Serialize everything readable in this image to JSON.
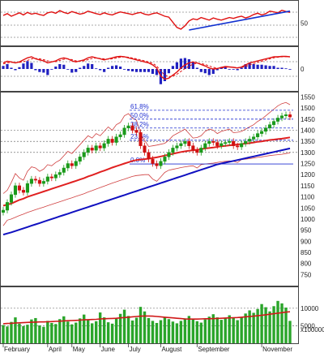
{
  "colors": {
    "up": "#1a9a1a",
    "down": "#d01010",
    "ma_short": "#e02020",
    "ma_long": "#1010c0",
    "bands": "#d04040",
    "rsi": "#e01010",
    "trendline": "#1030d0",
    "fib": "#2030d0",
    "volume": "#2aa52a",
    "volume_ma": "#d01818"
  },
  "chart_data": [
    {
      "type": "line",
      "panel": "rsi",
      "y_ticks": [
        50
      ],
      "ylim": [
        0,
        100
      ],
      "series": [
        {
          "values": [
            68,
            72,
            66,
            70,
            74,
            69,
            75,
            71,
            73,
            70,
            68,
            74,
            76,
            73,
            79,
            75,
            72,
            77,
            74,
            71,
            73,
            78,
            75,
            72,
            70,
            74,
            71,
            69,
            73,
            76,
            74,
            72,
            70,
            73,
            75,
            71,
            69,
            72,
            74,
            70,
            66,
            64,
            52,
            40,
            36,
            44,
            55,
            60,
            58,
            63,
            60,
            57,
            62,
            59,
            57,
            60,
            63,
            61,
            64,
            66,
            62,
            65,
            70,
            73,
            69,
            72,
            78,
            76,
            74,
            80,
            77,
            75
          ]
        }
      ],
      "annotations": [
        {
          "type": "trendline",
          "from": [
            46,
            34
          ],
          "to": [
            71,
            78
          ]
        }
      ]
    },
    {
      "type": "bar",
      "panel": "macd",
      "y_ticks": [
        0
      ],
      "ylim": [
        -1,
        1
      ],
      "series": [
        {
          "values": [
            0.3,
            0.38,
            0.35,
            0.3,
            0.35,
            0.45,
            0.55,
            0.6,
            0.5,
            0.45,
            0.4,
            0.3,
            0.35,
            0.4,
            0.5,
            0.55,
            0.5,
            0.4,
            0.35,
            0.4,
            0.45,
            0.55,
            0.6,
            0.55,
            0.5,
            0.45,
            0.5,
            0.55,
            0.6,
            0.62,
            0.6,
            0.55,
            0.5,
            0.45,
            0.4,
            0.35,
            0.3,
            0.2,
            0.05,
            -0.35,
            -0.5,
            -0.45,
            -0.3,
            -0.15,
            0.05,
            0.2,
            0.3,
            0.35,
            0.3,
            0.22,
            0.15,
            0.05,
            0.0,
            0.02,
            0.08,
            0.12,
            0.1,
            0.08,
            0.05,
            0.1,
            0.2,
            0.3,
            0.35,
            0.4,
            0.45,
            0.5,
            0.55,
            0.6,
            0.6,
            0.62,
            0.62,
            0.6
          ]
        },
        {
          "values": [
            0.25,
            0.3,
            0.33,
            0.32,
            0.32,
            0.36,
            0.42,
            0.5,
            0.52,
            0.5,
            0.46,
            0.4,
            0.36,
            0.36,
            0.42,
            0.48,
            0.5,
            0.46,
            0.4,
            0.38,
            0.4,
            0.46,
            0.52,
            0.54,
            0.52,
            0.5,
            0.48,
            0.5,
            0.54,
            0.58,
            0.6,
            0.58,
            0.54,
            0.5,
            0.45,
            0.4,
            0.35,
            0.28,
            0.15,
            -0.1,
            -0.3,
            -0.38,
            -0.35,
            -0.26,
            -0.12,
            0.02,
            0.14,
            0.24,
            0.28,
            0.27,
            0.22,
            0.15,
            0.08,
            0.04,
            0.05,
            0.08,
            0.1,
            0.09,
            0.07,
            0.08,
            0.12,
            0.2,
            0.27,
            0.33,
            0.38,
            0.44,
            0.5,
            0.55,
            0.58,
            0.6,
            0.61,
            0.6
          ]
        },
        {
          "values": [
            0.05,
            0.08,
            0.02,
            -0.02,
            0.03,
            0.09,
            0.13,
            0.1,
            -0.02,
            -0.05,
            -0.06,
            -0.1,
            -0.01,
            0.04,
            0.08,
            0.07,
            0.0,
            -0.06,
            -0.05,
            0.02,
            0.05,
            0.09,
            0.08,
            0.01,
            -0.02,
            -0.05,
            0.02,
            0.05,
            0.06,
            0.04,
            0.0,
            -0.03,
            -0.04,
            -0.05,
            -0.05,
            -0.05,
            -0.05,
            -0.08,
            -0.1,
            -0.25,
            -0.2,
            -0.07,
            0.05,
            0.11,
            0.17,
            0.18,
            0.16,
            0.11,
            0.02,
            -0.05,
            -0.07,
            -0.1,
            -0.08,
            -0.02,
            0.03,
            0.04,
            0.0,
            -0.01,
            -0.02,
            0.02,
            0.08,
            0.1,
            0.08,
            0.07,
            0.07,
            0.06,
            0.05,
            0.05,
            0.02,
            0.02,
            0.01,
            0.0
          ]
        }
      ]
    },
    {
      "type": "candlestick",
      "panel": "price",
      "categories": [
        "February",
        "April",
        "May",
        "June",
        "July",
        "August",
        "September",
        "November"
      ],
      "category_index": [
        0,
        11,
        17,
        24,
        31,
        39,
        48,
        64
      ],
      "y_ticks": [
        750,
        800,
        850,
        900,
        950,
        1000,
        1050,
        1100,
        1150,
        1200,
        1250,
        1300,
        1350,
        1400,
        1450,
        1500,
        1550
      ],
      "ylim": [
        700,
        1570
      ],
      "close": [
        1040,
        1075,
        1110,
        1150,
        1130,
        1120,
        1160,
        1180,
        1175,
        1160,
        1170,
        1190,
        1185,
        1200,
        1210,
        1230,
        1250,
        1240,
        1260,
        1280,
        1300,
        1320,
        1310,
        1330,
        1320,
        1340,
        1360,
        1345,
        1370,
        1380,
        1410,
        1420,
        1400,
        1390,
        1330,
        1300,
        1270,
        1250,
        1240,
        1260,
        1280,
        1300,
        1320,
        1330,
        1340,
        1350,
        1330,
        1310,
        1300,
        1320,
        1340,
        1350,
        1345,
        1330,
        1340,
        1345,
        1350,
        1330,
        1325,
        1340,
        1350,
        1360,
        1370,
        1385,
        1395,
        1410,
        1425,
        1440,
        1455,
        1465,
        1470,
        1460
      ],
      "sma_short": [
        1060,
        1065,
        1070,
        1078,
        1086,
        1092,
        1100,
        1106,
        1112,
        1118,
        1124,
        1130,
        1136,
        1142,
        1148,
        1154,
        1160,
        1166,
        1172,
        1178,
        1184,
        1192,
        1198,
        1205,
        1212,
        1218,
        1225,
        1232,
        1238,
        1244,
        1250,
        1256,
        1262,
        1266,
        1268,
        1270,
        1272,
        1275,
        1278,
        1282,
        1286,
        1290,
        1294,
        1298,
        1302,
        1305,
        1308,
        1310,
        1312,
        1315,
        1318,
        1320,
        1322,
        1325,
        1328,
        1330,
        1332,
        1334,
        1336,
        1338,
        1340,
        1342,
        1345,
        1348,
        1350,
        1353,
        1356,
        1358,
        1360,
        1362,
        1365,
        1368
      ],
      "sma_long": [
        930,
        935,
        940,
        946,
        952,
        958,
        964,
        970,
        976,
        982,
        988,
        994,
        1000,
        1006,
        1012,
        1018,
        1024,
        1030,
        1036,
        1042,
        1048,
        1054,
        1060,
        1066,
        1072,
        1078,
        1084,
        1090,
        1096,
        1102,
        1108,
        1114,
        1120,
        1126,
        1132,
        1138,
        1144,
        1150,
        1156,
        1162,
        1168,
        1174,
        1180,
        1186,
        1192,
        1198,
        1204,
        1210,
        1216,
        1222,
        1228,
        1234,
        1240,
        1246,
        1250,
        1254,
        1258,
        1262,
        1266,
        1270,
        1274,
        1278,
        1282,
        1286,
        1290,
        1294,
        1298,
        1302,
        1306,
        1310,
        1314,
        1318
      ],
      "fib_levels": [
        {
          "label": "61.8%",
          "value": 1490
        },
        {
          "label": "50.0%",
          "value": 1450
        },
        {
          "label": "38.2%",
          "value": 1410
        },
        {
          "label": "23.6%",
          "value": 1355
        },
        {
          "label": "0.0%",
          "value": 1248
        }
      ]
    },
    {
      "type": "bar",
      "panel": "volume",
      "y_ticks": [
        10000,
        5000
      ],
      "y_tick_labels": [
        "10000",
        "5000"
      ],
      "ylim": [
        0,
        16000
      ],
      "multiplier_label": "x100000",
      "values": [
        5200,
        4800,
        6100,
        7400,
        5600,
        4900,
        5300,
        6800,
        7200,
        5100,
        4700,
        6400,
        5800,
        5500,
        6900,
        7700,
        6200,
        5400,
        5900,
        7100,
        8200,
        6600,
        5700,
        6300,
        8800,
        7400,
        6000,
        5600,
        7000,
        8400,
        9600,
        7800,
        6500,
        7300,
        10400,
        9100,
        7200,
        6400,
        5800,
        6600,
        7500,
        6900,
        6200,
        5700,
        6400,
        7100,
        7800,
        7000,
        6300,
        5900,
        6800,
        7600,
        8300,
        7400,
        6700,
        7200,
        8000,
        7300,
        6600,
        7400,
        8500,
        9400,
        8700,
        9800,
        11200,
        10300,
        9100,
        10600,
        12100,
        11400,
        10200,
        6400
      ],
      "ma": [
        5600,
        5650,
        5700,
        5800,
        5850,
        5900,
        5950,
        6000,
        6050,
        6100,
        6100,
        6150,
        6200,
        6250,
        6300,
        6400,
        6450,
        6500,
        6550,
        6600,
        6700,
        6750,
        6800,
        6850,
        6950,
        7000,
        7050,
        7100,
        7150,
        7250,
        7350,
        7450,
        7550,
        7650,
        7750,
        7800,
        7800,
        7750,
        7650,
        7550,
        7450,
        7350,
        7250,
        7150,
        7050,
        6950,
        6900,
        6900,
        6900,
        6950,
        7000,
        7000,
        7050,
        7100,
        7150,
        7200,
        7250,
        7300,
        7350,
        7450,
        7550,
        7650,
        7750,
        7850,
        8000,
        8150,
        8300,
        8450,
        8600,
        8750,
        8900,
        9000
      ]
    }
  ]
}
